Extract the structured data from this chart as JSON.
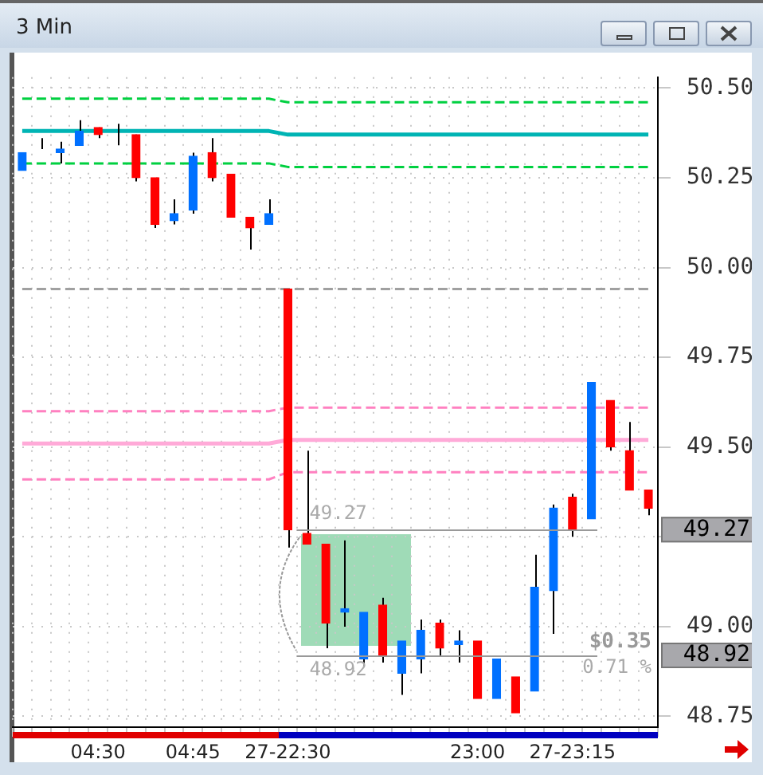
{
  "chart_data": {
    "type": "candlestick",
    "title": "3 Min",
    "categories": [
      null,
      null,
      null,
      null,
      "04:30",
      null,
      null,
      null,
      null,
      "04:45",
      null,
      null,
      null,
      null,
      "27-22:30",
      null,
      null,
      null,
      null,
      null,
      null,
      null,
      null,
      null,
      "23:00",
      null,
      null,
      null,
      null,
      "27-23:15",
      null,
      null,
      null,
      null
    ],
    "ohlc": [
      [
        50.27,
        50.32,
        50.27,
        50.32
      ],
      [
        50.33,
        50.36,
        50.33,
        50.33
      ],
      [
        50.32,
        50.35,
        50.29,
        50.33
      ],
      [
        50.34,
        50.41,
        50.34,
        50.38
      ],
      [
        50.39,
        50.39,
        50.36,
        50.37
      ],
      [
        50.36,
        50.4,
        50.34,
        50.36
      ],
      [
        50.37,
        50.37,
        50.24,
        50.25
      ],
      [
        50.25,
        50.25,
        50.11,
        50.12
      ],
      [
        50.13,
        50.19,
        50.12,
        50.15
      ],
      [
        50.16,
        50.32,
        50.15,
        50.31
      ],
      [
        50.32,
        50.36,
        50.24,
        50.25
      ],
      [
        50.26,
        50.26,
        50.14,
        50.14
      ],
      [
        50.14,
        50.14,
        50.05,
        50.11
      ],
      [
        50.12,
        50.19,
        50.12,
        50.15
      ],
      [
        49.94,
        49.94,
        49.22,
        49.27
      ],
      [
        49.26,
        49.49,
        49.23,
        49.23
      ],
      [
        49.23,
        49.23,
        48.94,
        49.01
      ],
      [
        49.04,
        49.24,
        49.0,
        49.05
      ],
      [
        48.91,
        49.04,
        48.89,
        49.04
      ],
      [
        49.06,
        49.08,
        48.9,
        48.92
      ],
      [
        48.87,
        48.96,
        48.81,
        48.96
      ],
      [
        48.91,
        49.02,
        48.87,
        48.99
      ],
      [
        49.01,
        49.02,
        48.92,
        48.94
      ],
      [
        48.95,
        48.99,
        48.9,
        48.96
      ],
      [
        48.96,
        48.96,
        48.8,
        48.8
      ],
      [
        48.8,
        48.91,
        48.8,
        48.91
      ],
      [
        48.86,
        48.86,
        48.76,
        48.76
      ],
      [
        48.82,
        49.2,
        48.82,
        49.11
      ],
      [
        49.1,
        49.34,
        48.98,
        49.33
      ],
      [
        49.36,
        49.37,
        49.25,
        49.27
      ],
      [
        49.3,
        49.68,
        49.3,
        49.68
      ],
      [
        49.63,
        49.63,
        49.49,
        49.5
      ],
      [
        49.49,
        49.57,
        49.38,
        49.38
      ],
      [
        49.38,
        49.38,
        49.31,
        49.33
      ]
    ],
    "colors": [
      "#0070ff",
      "#0070ff",
      "#0070ff",
      "#0070ff",
      "#ff0000",
      "#0070ff",
      "#ff0000",
      "#ff0000",
      "#0070ff",
      "#0070ff",
      "#ff0000",
      "#ff0000",
      "#ff0000",
      "#0070ff",
      "#ff0000",
      "#ff0000",
      "#ff0000",
      "#0070ff",
      "#0070ff",
      "#ff0000",
      "#0070ff",
      "#0070ff",
      "#ff0000",
      "#0070ff",
      "#ff0000",
      "#0070ff",
      "#ff0000",
      "#0070ff",
      "#0070ff",
      "#ff0000",
      "#0070ff",
      "#ff0000",
      "#ff0000",
      "#ff0000"
    ],
    "series": [
      {
        "type": "line",
        "color": "#00d040",
        "line_style": "dashed",
        "values": [
          50.47,
          50.47,
          50.47,
          50.47,
          50.47,
          50.47,
          50.47,
          50.47,
          50.47,
          50.47,
          50.47,
          50.47,
          50.47,
          50.47,
          50.46,
          50.46,
          50.46,
          50.46,
          50.46,
          50.46,
          50.46,
          50.46,
          50.46,
          50.46,
          50.46,
          50.46,
          50.46,
          50.46,
          50.46,
          50.46,
          50.46,
          50.46,
          50.46,
          50.46
        ]
      },
      {
        "type": "line",
        "color": "#00b4b4",
        "line_style": "solid",
        "values": [
          50.38,
          50.38,
          50.38,
          50.38,
          50.38,
          50.38,
          50.38,
          50.38,
          50.38,
          50.38,
          50.38,
          50.38,
          50.38,
          50.38,
          50.37,
          50.37,
          50.37,
          50.37,
          50.37,
          50.37,
          50.37,
          50.37,
          50.37,
          50.37,
          50.37,
          50.37,
          50.37,
          50.37,
          50.37,
          50.37,
          50.37,
          50.37,
          50.37,
          50.37
        ]
      },
      {
        "type": "line",
        "color": "#00d040",
        "line_style": "dashed",
        "values": [
          50.29,
          50.29,
          50.29,
          50.29,
          50.29,
          50.29,
          50.29,
          50.29,
          50.29,
          50.29,
          50.29,
          50.29,
          50.29,
          50.29,
          50.28,
          50.28,
          50.28,
          50.28,
          50.28,
          50.28,
          50.28,
          50.28,
          50.28,
          50.28,
          50.28,
          50.28,
          50.28,
          50.28,
          50.28,
          50.28,
          50.28,
          50.28,
          50.28,
          50.28
        ]
      },
      {
        "type": "line",
        "color": "#a0a0a0",
        "line_style": "dashed",
        "values": [
          49.94,
          49.94,
          49.94,
          49.94,
          49.94,
          49.94,
          49.94,
          49.94,
          49.94,
          49.94,
          49.94,
          49.94,
          49.94,
          49.94,
          49.94,
          49.94,
          49.94,
          49.94,
          49.94,
          49.94,
          49.94,
          49.94,
          49.94,
          49.94,
          49.94,
          49.94,
          49.94,
          49.94,
          49.94,
          49.94,
          49.94,
          49.94,
          49.94,
          49.94
        ]
      },
      {
        "type": "line",
        "color": "#ff80c0",
        "line_style": "dashed",
        "values": [
          49.6,
          49.6,
          49.6,
          49.6,
          49.6,
          49.6,
          49.6,
          49.6,
          49.6,
          49.6,
          49.6,
          49.6,
          49.6,
          49.6,
          49.61,
          49.61,
          49.61,
          49.61,
          49.61,
          49.61,
          49.61,
          49.61,
          49.61,
          49.61,
          49.61,
          49.61,
          49.61,
          49.61,
          49.61,
          49.61,
          49.61,
          49.61,
          49.61,
          49.61
        ]
      },
      {
        "type": "line",
        "color": "#ffaad8",
        "line_style": "solid",
        "values": [
          49.51,
          49.51,
          49.51,
          49.51,
          49.51,
          49.51,
          49.51,
          49.51,
          49.51,
          49.51,
          49.51,
          49.51,
          49.51,
          49.51,
          49.52,
          49.52,
          49.52,
          49.52,
          49.52,
          49.52,
          49.52,
          49.52,
          49.52,
          49.52,
          49.52,
          49.52,
          49.52,
          49.52,
          49.52,
          49.52,
          49.52,
          49.52,
          49.52,
          49.52
        ]
      },
      {
        "type": "line",
        "color": "#ff80c0",
        "line_style": "dashed",
        "values": [
          49.41,
          49.41,
          49.41,
          49.41,
          49.41,
          49.41,
          49.41,
          49.41,
          49.41,
          49.41,
          49.41,
          49.41,
          49.41,
          49.41,
          49.43,
          49.43,
          49.43,
          49.43,
          49.43,
          49.43,
          49.43,
          49.43,
          49.43,
          49.43,
          49.43,
          49.43,
          49.43,
          49.43,
          49.43,
          49.43,
          49.43,
          49.43,
          49.43,
          49.43
        ]
      }
    ],
    "ref_lines": [
      {
        "axis": "y",
        "value": 49.27,
        "label": "49.27",
        "color": "#999999"
      },
      {
        "axis": "y",
        "value": 48.92,
        "label": "48.92",
        "color": "#999999"
      }
    ],
    "annotations": [
      "$0.35",
      "0.71 %"
    ],
    "ylim": [
      48.72,
      50.53
    ],
    "yticks": [
      48.75,
      {
        "value": 49,
        "label": "49.00"
      },
      {
        "value": 49.25,
        "label": null
      },
      {
        "value": 49.5,
        "label": "49.50"
      },
      49.75,
      {
        "value": 50,
        "label": "50.00"
      },
      50.25,
      {
        "value": 50.5,
        "label": "50.50"
      }
    ],
    "grid": true
  }
}
